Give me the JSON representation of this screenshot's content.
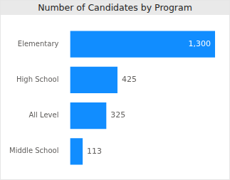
{
  "chart_data": {
    "type": "bar",
    "orientation": "horizontal",
    "title": "Number of Candidates by Program",
    "categories": [
      "Elementary",
      "High School",
      "All Level",
      "Middle School"
    ],
    "values": [
      1300,
      425,
      325,
      113
    ],
    "value_labels": [
      "1,300",
      "425",
      "325",
      "113"
    ],
    "color": "#118dff",
    "xlim": [
      0,
      1300
    ],
    "grid": false,
    "data_labels": true,
    "tick_labels": "y"
  }
}
